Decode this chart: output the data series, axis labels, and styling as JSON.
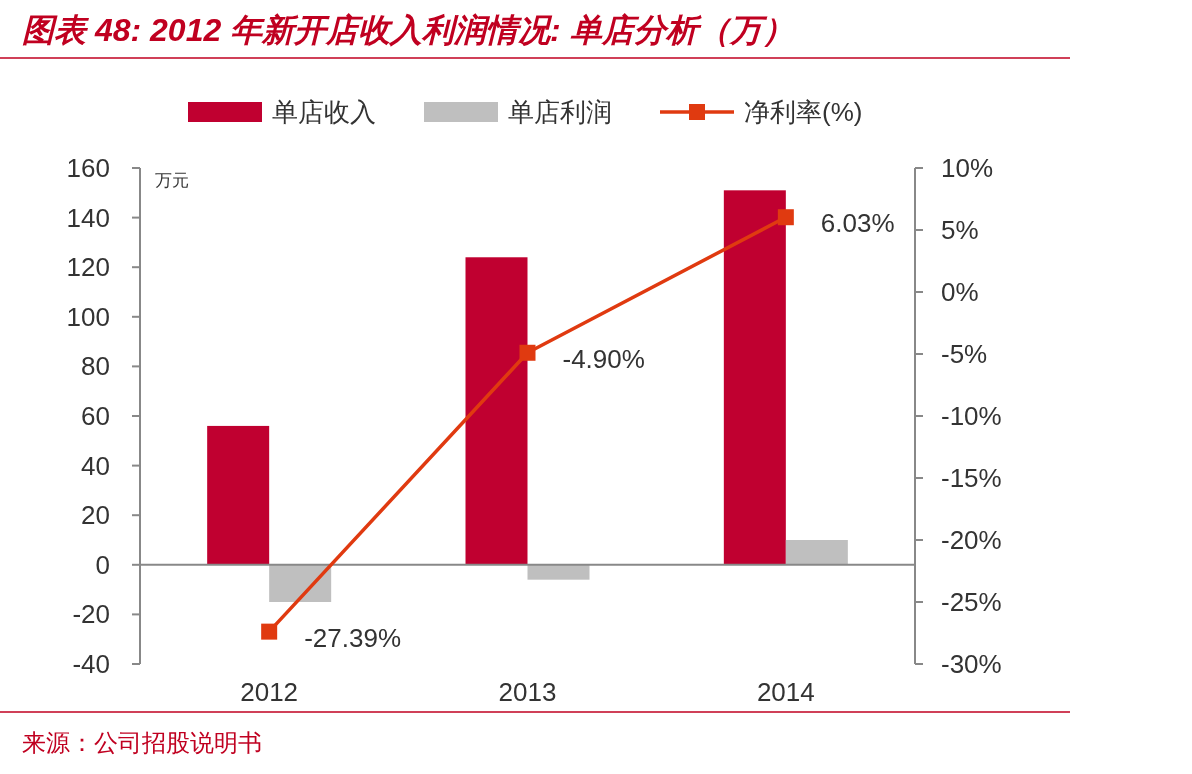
{
  "chart_data": {
    "type": "bar",
    "title": "图表 48: 2012 年新开店收入利润情况: 单店分析（万）",
    "ylabel": "万元",
    "annotations": [
      "来源：公司招股说明书"
    ],
    "categories": [
      "2012",
      "2013",
      "2014"
    ],
    "series": [
      {
        "name": "单店收入",
        "color": "#c00030",
        "values": [
          56,
          124,
          151
        ]
      },
      {
        "name": "单店利润",
        "color": "#bfbfbf",
        "values": [
          -15,
          -6,
          10
        ]
      },
      {
        "name": "净利率(%)",
        "type": "line",
        "axis": "y2",
        "color": "#e03a10",
        "marker": "square",
        "values": [
          -27.39,
          -4.9,
          6.03
        ],
        "value_labels": [
          "-27.39%",
          "-4.90%",
          "6.03%"
        ]
      }
    ],
    "ylim": [
      -40,
      160
    ],
    "yticks": [
      -40,
      -20,
      0,
      20,
      40,
      60,
      80,
      100,
      120,
      140,
      160
    ],
    "y2lim": [
      -30,
      10
    ],
    "y2ticks": [
      {
        "value": -30,
        "label": "-30%"
      },
      {
        "value": -25,
        "label": "-25%"
      },
      {
        "value": -20,
        "label": "-20%"
      },
      {
        "value": -15,
        "label": "-15%"
      },
      {
        "value": -10,
        "label": "-10%"
      },
      {
        "value": -5,
        "label": "-5%"
      },
      {
        "value": 0,
        "label": "0%"
      },
      {
        "value": 5,
        "label": "5%"
      },
      {
        "value": 10,
        "label": "10%"
      }
    ],
    "legend": "top"
  }
}
